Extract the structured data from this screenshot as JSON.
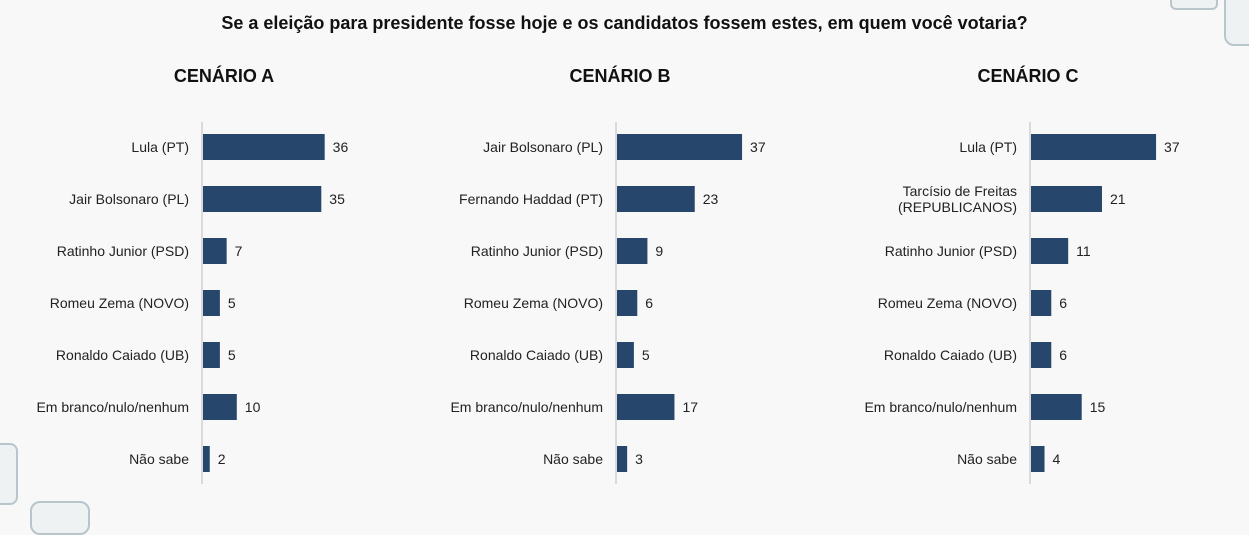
{
  "title": "Se a eleição para presidente fosse hoje e os candidatos fossem estes, em quem você votaria?",
  "chart_data": [
    {
      "type": "bar",
      "orientation": "horizontal",
      "title": "CENÁRIO A",
      "categories": [
        "Lula (PT)",
        "Jair Bolsonaro (PL)",
        "Ratinho Junior (PSD)",
        "Romeu Zema (NOVO)",
        "Ronaldo Caiado (UB)",
        "Em branco/nulo/nenhum",
        "Não sabe"
      ],
      "values": [
        36,
        35,
        7,
        5,
        5,
        10,
        2
      ],
      "data_labels": [
        "36",
        "35",
        "7",
        "5",
        "5",
        "10",
        "2"
      ],
      "xlim": [
        0,
        40
      ],
      "color": "#27466c"
    },
    {
      "type": "bar",
      "orientation": "horizontal",
      "title": "CENÁRIO B",
      "categories": [
        "Jair Bolsonaro (PL)",
        "Fernando Haddad (PT)",
        "Ratinho Junior (PSD)",
        "Romeu Zema (NOVO)",
        "Ronaldo Caiado (UB)",
        "Em branco/nulo/nenhum",
        "Não sabe"
      ],
      "values": [
        37,
        23,
        9,
        6,
        5,
        17,
        3
      ],
      "data_labels": [
        "37",
        "23",
        "9",
        "6",
        "5",
        "17",
        "3"
      ],
      "xlim": [
        0,
        40
      ],
      "color": "#27466c"
    },
    {
      "type": "bar",
      "orientation": "horizontal",
      "title": "CENÁRIO C",
      "categories": [
        "Lula (PT)",
        "Tarcísio de Freitas (REPUBLICANOS)",
        "Ratinho Junior (PSD)",
        "Romeu Zema (NOVO)",
        "Ronaldo Caiado (UB)",
        "Em branco/nulo/nenhum",
        "Não sabe"
      ],
      "values": [
        37,
        21,
        11,
        6,
        6,
        15,
        4
      ],
      "data_labels": [
        "37",
        "21",
        "11",
        "6",
        "6",
        "15",
        "4"
      ],
      "xlim": [
        0,
        40
      ],
      "color": "#27466c"
    }
  ]
}
